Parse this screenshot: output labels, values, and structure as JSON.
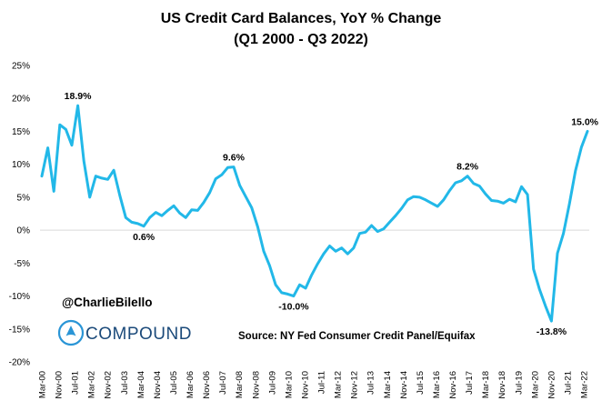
{
  "chart_data": {
    "type": "line",
    "title": "US Credit Card Balances, YoY % Change",
    "subtitle": "(Q1 2000 - Q3 2022)",
    "xlabel": "",
    "ylabel": "",
    "ylim": [
      -20,
      25
    ],
    "y_ticks": [
      25,
      20,
      15,
      10,
      5,
      0,
      -5,
      -10,
      -15,
      -20
    ],
    "y_tick_labels": [
      "25%",
      "20%",
      "15%",
      "10%",
      "5%",
      "0%",
      "-5%",
      "-10%",
      "-15%",
      "-20%"
    ],
    "x_tick_labels": [
      "Mar-00",
      "Nov-00",
      "Jul-01",
      "Mar-02",
      "Nov-02",
      "Jul-03",
      "Mar-04",
      "Nov-04",
      "Jul-05",
      "Mar-06",
      "Nov-06",
      "Jul-07",
      "Mar-08",
      "Nov-08",
      "Jul-09",
      "Mar-10",
      "Nov-10",
      "Jul-11",
      "Mar-12",
      "Nov-12",
      "Jul-13",
      "Mar-14",
      "Nov-14",
      "Jul-15",
      "Mar-16",
      "Nov-16",
      "Jul-17",
      "Mar-18",
      "Nov-18",
      "Jul-19",
      "Mar-20",
      "Nov-20",
      "Jul-21",
      "Mar-22"
    ],
    "grid": false,
    "legend": "none",
    "line_color": "#22b8e8",
    "series": [
      {
        "values": [
          8.2,
          12.5,
          5.9,
          16.0,
          15.3,
          12.9,
          18.9,
          10.5,
          5.0,
          8.2,
          7.9,
          7.7,
          9.1,
          5.3,
          1.9,
          1.2,
          1.0,
          0.6,
          1.9,
          2.7,
          2.2,
          3.0,
          3.7,
          2.6,
          1.9,
          3.1,
          3.0,
          4.2,
          5.7,
          7.8,
          8.4,
          9.5,
          9.6,
          6.8,
          5.1,
          3.4,
          0.5,
          -3.2,
          -5.4,
          -8.3,
          -9.5,
          -9.7,
          -10.0,
          -8.3,
          -8.8,
          -6.8,
          -5.1,
          -3.6,
          -2.4,
          -3.2,
          -2.7,
          -3.6,
          -2.7,
          -0.5,
          -0.3,
          0.7,
          -0.2,
          0.2,
          1.2,
          2.2,
          3.3,
          4.6,
          5.1,
          5.0,
          4.6,
          4.1,
          3.6,
          4.6,
          6.0,
          7.2,
          7.5,
          8.2,
          7.1,
          6.7,
          5.5,
          4.5,
          4.4,
          4.1,
          4.7,
          4.3,
          6.6,
          5.4,
          -5.9,
          -9.0,
          -11.5,
          -13.8,
          -3.5,
          -0.5,
          4.0,
          9.0,
          12.6,
          15.0
        ]
      }
    ],
    "annotations": [
      {
        "label": "18.9%",
        "index": 6,
        "value": 18.9
      },
      {
        "label": "0.6%",
        "index": 17,
        "value": 0.6
      },
      {
        "label": "9.6%",
        "index": 32,
        "value": 9.6
      },
      {
        "label": "-10.0%",
        "index": 42,
        "value": -10.0
      },
      {
        "label": "8.2%",
        "index": 71,
        "value": 8.2
      },
      {
        "label": "-13.8%",
        "index": 85,
        "value": -13.8
      },
      {
        "label": "15.0%",
        "index": 91,
        "value": 15.0
      }
    ]
  },
  "footer": {
    "handle": "@CharlieBilello",
    "brand": "COMPOUND",
    "source": "Source: NY Fed Consumer Credit Panel/Equifax"
  },
  "icons": {
    "brand_logo": "compound-logo-icon"
  },
  "colors": {
    "brand": "#1b4a7a",
    "line": "#22b8e8"
  }
}
